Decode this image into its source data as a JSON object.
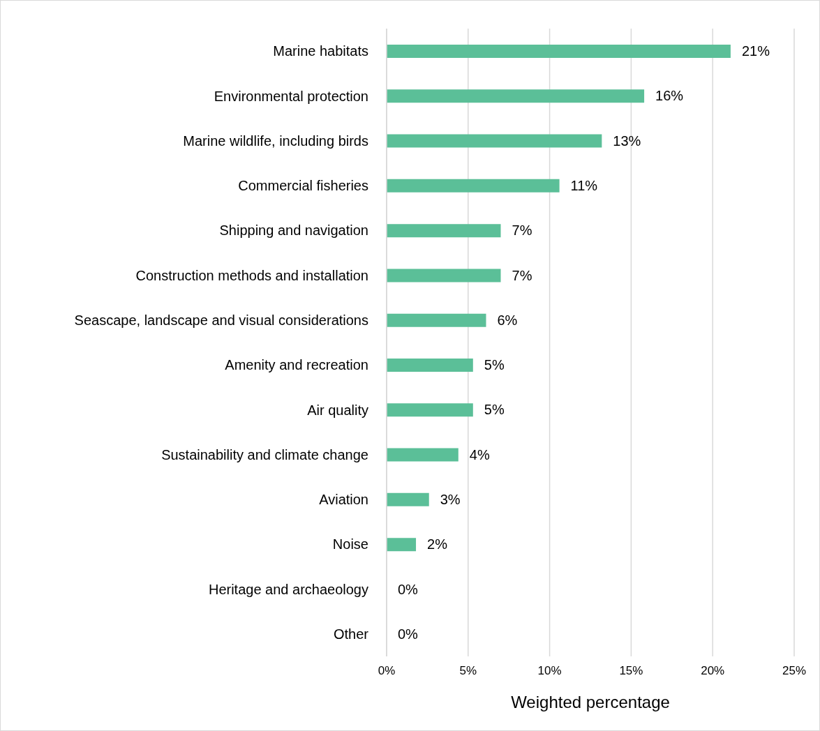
{
  "chart_data": {
    "type": "bar",
    "orientation": "horizontal",
    "xlabel": "Weighted percentage",
    "categories": [
      "Marine habitats",
      "Environmental protection",
      "Marine wildlife, including birds",
      "Commercial fisheries",
      "Shipping and navigation",
      "Construction methods and installation",
      "Seascape, landscape and visual considerations",
      "Amenity and recreation",
      "Air quality",
      "Sustainability and climate change",
      "Aviation",
      "Noise",
      "Heritage and archaeology",
      "Other"
    ],
    "values": [
      21.1,
      15.8,
      13.2,
      10.6,
      7.0,
      7.0,
      6.1,
      5.3,
      5.3,
      4.4,
      2.6,
      1.8,
      0,
      0
    ],
    "value_labels": [
      "21%",
      "16%",
      "13%",
      "11%",
      "7%",
      "7%",
      "6%",
      "5%",
      "5%",
      "4%",
      "3%",
      "2%",
      "0%",
      "0%"
    ],
    "color": "#5bbf98",
    "xlim": [
      0,
      25
    ],
    "xticks": [
      {
        "value": 0,
        "label": "0%"
      },
      {
        "value": 5,
        "label": "5%"
      },
      {
        "value": 10,
        "label": "10%"
      },
      {
        "value": 15,
        "label": "15%"
      },
      {
        "value": 20,
        "label": "20%"
      },
      {
        "value": 25,
        "label": "25%"
      }
    ],
    "grid": "x",
    "legend": false
  }
}
